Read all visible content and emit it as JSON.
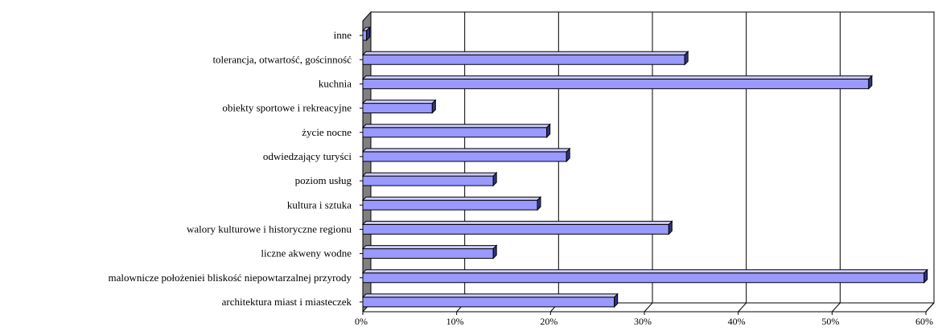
{
  "chart_data": {
    "type": "bar",
    "orientation": "horizontal",
    "style": "3d",
    "categories": [
      "inne",
      "tolerancja, otwartość, gościnność",
      "kuchnia",
      "obiekty sportowe i rekreacyjne",
      "życie nocne",
      "odwiedzający turyści",
      "poziom usług",
      "kultura i sztuka",
      "walory kulturowe i historyczne regionu",
      "liczne akweny wodne",
      "malownicze położeniei bliskość niepowtarzalnej przyrody",
      "architektura miast i miasteczek"
    ],
    "values": [
      0.4,
      34.3,
      53.9,
      7.4,
      19.6,
      21.7,
      13.9,
      18.6,
      32.6,
      13.9,
      59.8,
      26.8
    ],
    "ticks": [
      "0%",
      "10%",
      "20%",
      "30%",
      "40%",
      "50%",
      "60%"
    ],
    "xlim": [
      0,
      60
    ],
    "grid": true,
    "legend": "none",
    "colors": {
      "bar_front": "#9999ff",
      "bar_top": "#ccccff",
      "bar_side": "#33337f",
      "wall": "#808080",
      "grid": "#000000"
    }
  }
}
